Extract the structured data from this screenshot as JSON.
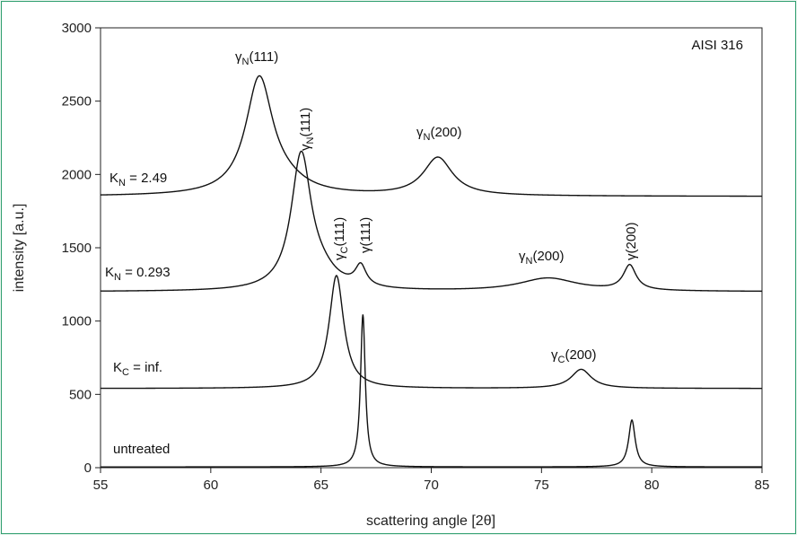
{
  "chart_data": {
    "type": "line",
    "xlabel": "scattering angle [2θ]",
    "ylabel": "intensity [a.u.]",
    "xlim": [
      55,
      85
    ],
    "ylim": [
      0,
      3000
    ],
    "x_ticks": [
      "55",
      "60",
      "65",
      "70",
      "75",
      "80",
      "85"
    ],
    "y_ticks": [
      "0",
      "500",
      "1000",
      "1500",
      "2000",
      "2500",
      "3000"
    ],
    "grid": false,
    "title_box": "AISI 316",
    "series_labels": {
      "kn249": {
        "main": "K",
        "sub": "N",
        "rest": " = 2.49"
      },
      "kn0293": {
        "main": "K",
        "sub": "N",
        "rest": " = 0.293"
      },
      "kcinf": {
        "main": "K",
        "sub": "C",
        "rest": " = inf."
      },
      "untreated": {
        "main": "untreated"
      }
    },
    "series": [
      {
        "baseline": 1850,
        "peaks": [
          {
            "x": 62.2,
            "height": 790,
            "width": 0.75
          },
          {
            "x": 70.3,
            "height": 260,
            "width": 0.8
          },
          {
            "x": 63.4,
            "height": 60,
            "width": 1.2
          }
        ]
      },
      {
        "baseline": 1200,
        "peaks": [
          {
            "x": 64.1,
            "height": 910,
            "width": 0.55
          },
          {
            "x": 65.0,
            "height": 90,
            "width": 0.9
          },
          {
            "x": 66.8,
            "height": 140,
            "width": 0.3
          },
          {
            "x": 75.3,
            "height": 90,
            "width": 1.6
          },
          {
            "x": 79.0,
            "height": 170,
            "width": 0.35
          }
        ]
      },
      {
        "baseline": 540,
        "peaks": [
          {
            "x": 65.7,
            "height": 770,
            "width": 0.4
          },
          {
            "x": 76.8,
            "height": 130,
            "width": 0.55
          }
        ]
      },
      {
        "baseline": 5,
        "peaks": [
          {
            "x": 66.9,
            "height": 1040,
            "width": 0.13
          },
          {
            "x": 79.1,
            "height": 320,
            "width": 0.18
          }
        ]
      }
    ],
    "annotations": {
      "gn111_a": {
        "main": "γ",
        "sub": "N",
        "rest": "(111)"
      },
      "gn200_a": {
        "main": "γ",
        "sub": "N",
        "rest": "(200)"
      },
      "gn111_b": {
        "main": "γ",
        "sub": "N",
        "rest": "(111)"
      },
      "gc111": {
        "main": "γ",
        "sub": "C",
        "rest": "(111)"
      },
      "g111": {
        "main": "γ(111)"
      },
      "gn200_b": {
        "main": "γ",
        "sub": "N",
        "rest": "(200)"
      },
      "g200": {
        "main": "γ(200)"
      },
      "gc200": {
        "main": "γ",
        "sub": "C",
        "rest": "(200)"
      }
    }
  }
}
